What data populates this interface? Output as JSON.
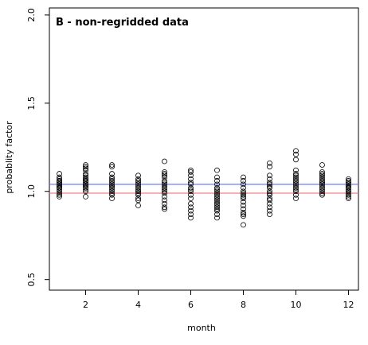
{
  "chart_data": {
    "type": "scatter",
    "title": "B - non-regridded data",
    "xlabel": "month",
    "ylabel": "probablity factor",
    "xlim": [
      0.62,
      12.38
    ],
    "ylim": [
      0.44,
      2.04
    ],
    "xticks": [
      2,
      4,
      6,
      8,
      10,
      12
    ],
    "yticks": [
      0.5,
      1.0,
      1.5,
      2.0
    ],
    "xtick_labels": [
      "2",
      "4",
      "6",
      "8",
      "10",
      "12"
    ],
    "ytick_labels": [
      "0.5",
      "1.0",
      "1.5",
      "2.0"
    ],
    "grid": false,
    "reference_lines": [
      {
        "y": 1.04,
        "color": "#6f7ff0"
      },
      {
        "y": 0.99,
        "color": "#f08080"
      }
    ],
    "marker_color": "#000000",
    "series": [
      {
        "month": 1,
        "values": [
          1.1,
          1.08,
          1.07,
          1.06,
          1.05,
          1.05,
          1.04,
          1.04,
          1.03,
          1.02,
          1.02,
          1.01,
          1.0,
          0.99,
          0.98,
          0.97,
          1.03,
          1.06
        ]
      },
      {
        "month": 2,
        "values": [
          1.15,
          1.14,
          1.13,
          1.12,
          1.1,
          1.09,
          1.08,
          1.07,
          1.07,
          1.06,
          1.05,
          1.04,
          1.04,
          1.03,
          1.03,
          1.02,
          1.01,
          1.0,
          0.97,
          1.06
        ]
      },
      {
        "month": 3,
        "values": [
          1.15,
          1.14,
          1.1,
          1.08,
          1.07,
          1.06,
          1.05,
          1.04,
          1.03,
          1.02,
          1.01,
          1.0,
          0.99,
          0.98,
          0.96,
          1.03
        ]
      },
      {
        "month": 4,
        "values": [
          1.09,
          1.07,
          1.06,
          1.05,
          1.04,
          1.03,
          1.02,
          1.01,
          1.0,
          0.99,
          0.98,
          0.96,
          0.95,
          0.92,
          1.0
        ]
      },
      {
        "month": 5,
        "values": [
          1.17,
          1.11,
          1.1,
          1.09,
          1.08,
          1.06,
          1.05,
          1.04,
          1.02,
          1.01,
          1.0,
          0.99,
          0.97,
          0.95,
          0.93,
          0.91,
          0.9,
          1.03
        ]
      },
      {
        "month": 6,
        "values": [
          1.12,
          1.11,
          1.09,
          1.07,
          1.05,
          1.04,
          1.02,
          1.0,
          0.98,
          0.96,
          0.93,
          0.91,
          0.89,
          0.87,
          0.85,
          1.01
        ]
      },
      {
        "month": 7,
        "values": [
          1.12,
          1.08,
          1.06,
          1.04,
          1.02,
          1.0,
          0.99,
          0.97,
          0.96,
          0.95,
          0.94,
          0.93,
          0.92,
          0.91,
          0.9,
          0.89,
          0.87,
          0.85,
          0.98,
          1.01
        ]
      },
      {
        "month": 8,
        "values": [
          1.08,
          1.06,
          1.04,
          1.02,
          1.0,
          0.98,
          0.97,
          0.96,
          0.94,
          0.92,
          0.9,
          0.88,
          0.87,
          0.86,
          0.81,
          0.99
        ]
      },
      {
        "month": 9,
        "values": [
          1.16,
          1.14,
          1.09,
          1.07,
          1.05,
          1.04,
          1.02,
          1.0,
          0.99,
          0.98,
          0.96,
          0.95,
          0.93,
          0.91,
          0.89,
          0.87,
          1.03
        ]
      },
      {
        "month": 10,
        "values": [
          1.23,
          1.21,
          1.18,
          1.12,
          1.1,
          1.09,
          1.08,
          1.07,
          1.06,
          1.05,
          1.04,
          1.03,
          1.02,
          1.0,
          0.98,
          0.96,
          1.01
        ]
      },
      {
        "month": 11,
        "values": [
          1.15,
          1.11,
          1.1,
          1.09,
          1.08,
          1.07,
          1.06,
          1.05,
          1.04,
          1.03,
          1.02,
          1.01,
          1.0,
          0.99,
          0.98,
          1.05
        ]
      },
      {
        "month": 12,
        "values": [
          1.07,
          1.06,
          1.05,
          1.05,
          1.04,
          1.03,
          1.03,
          1.02,
          1.01,
          1.0,
          1.0,
          0.99,
          0.98,
          0.97,
          0.96,
          1.02
        ]
      }
    ]
  }
}
